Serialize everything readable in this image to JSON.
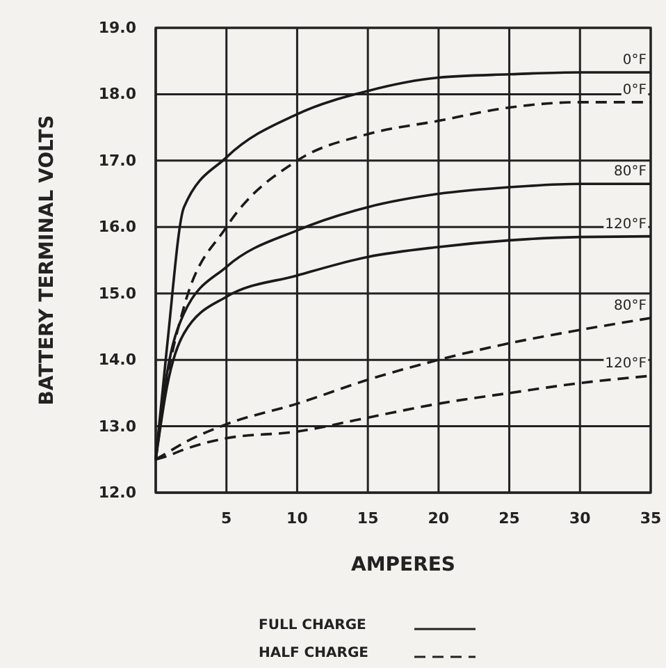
{
  "chart_data": {
    "type": "line",
    "xlabel": "AMPERES",
    "ylabel": "BATTERY TERMINAL VOLTS",
    "xlim": [
      0,
      35
    ],
    "ylim": [
      12,
      19
    ],
    "xticks": [
      {
        "value": 0,
        "label": null
      },
      5,
      10,
      15,
      20,
      25,
      30,
      35
    ],
    "yticks": [
      {
        "value": 12,
        "label": "12.0"
      },
      {
        "value": 13,
        "label": "13.0"
      },
      {
        "value": 14,
        "label": "14.0"
      },
      {
        "value": 15,
        "label": "15.0"
      },
      {
        "value": 16,
        "label": "16.0"
      },
      {
        "value": 17,
        "label": "17.0"
      },
      {
        "value": 18,
        "label": "18.0"
      },
      {
        "value": 19,
        "label": "19.0"
      }
    ],
    "grid": true,
    "marker": "none",
    "x": [
      0,
      0.8,
      2,
      5,
      10,
      15,
      20,
      25,
      30,
      35
    ],
    "series": [
      {
        "name": "0°F",
        "color": "#1a1a1a",
        "line_style": "solid",
        "values": [
          12.5,
          14.2,
          16.3,
          17.05,
          17.7,
          18.05,
          18.25,
          18.3,
          18.33,
          18.33
        ]
      },
      {
        "name": "0°F",
        "color": "#1a1a1a",
        "line_style": "dashed",
        "values": [
          12.5,
          13.7,
          14.8,
          16.0,
          17.0,
          17.4,
          17.6,
          17.8,
          17.88,
          17.88
        ]
      },
      {
        "name": "80°F",
        "color": "#1a1a1a",
        "line_style": "solid",
        "values": [
          12.5,
          13.8,
          14.7,
          15.4,
          15.95,
          16.3,
          16.5,
          16.6,
          16.65,
          16.65
        ]
      },
      {
        "name": "120°F",
        "color": "#1a1a1a",
        "line_style": "solid",
        "values": [
          12.5,
          13.6,
          14.4,
          14.95,
          15.27,
          15.55,
          15.7,
          15.8,
          15.85,
          15.86
        ]
      },
      {
        "name": "80°F",
        "color": "#1a1a1a",
        "line_style": "dashed",
        "values": [
          12.5,
          12.6,
          12.75,
          13.03,
          13.34,
          13.7,
          14.0,
          14.25,
          14.45,
          14.63
        ]
      },
      {
        "name": "120°F",
        "color": "#1a1a1a",
        "line_style": "dashed",
        "values": [
          12.5,
          12.55,
          12.65,
          12.82,
          12.92,
          13.13,
          13.34,
          13.5,
          13.65,
          13.76
        ]
      }
    ],
    "annotations": [
      "FULL CHARGE",
      "HALF CHARGE"
    ]
  }
}
